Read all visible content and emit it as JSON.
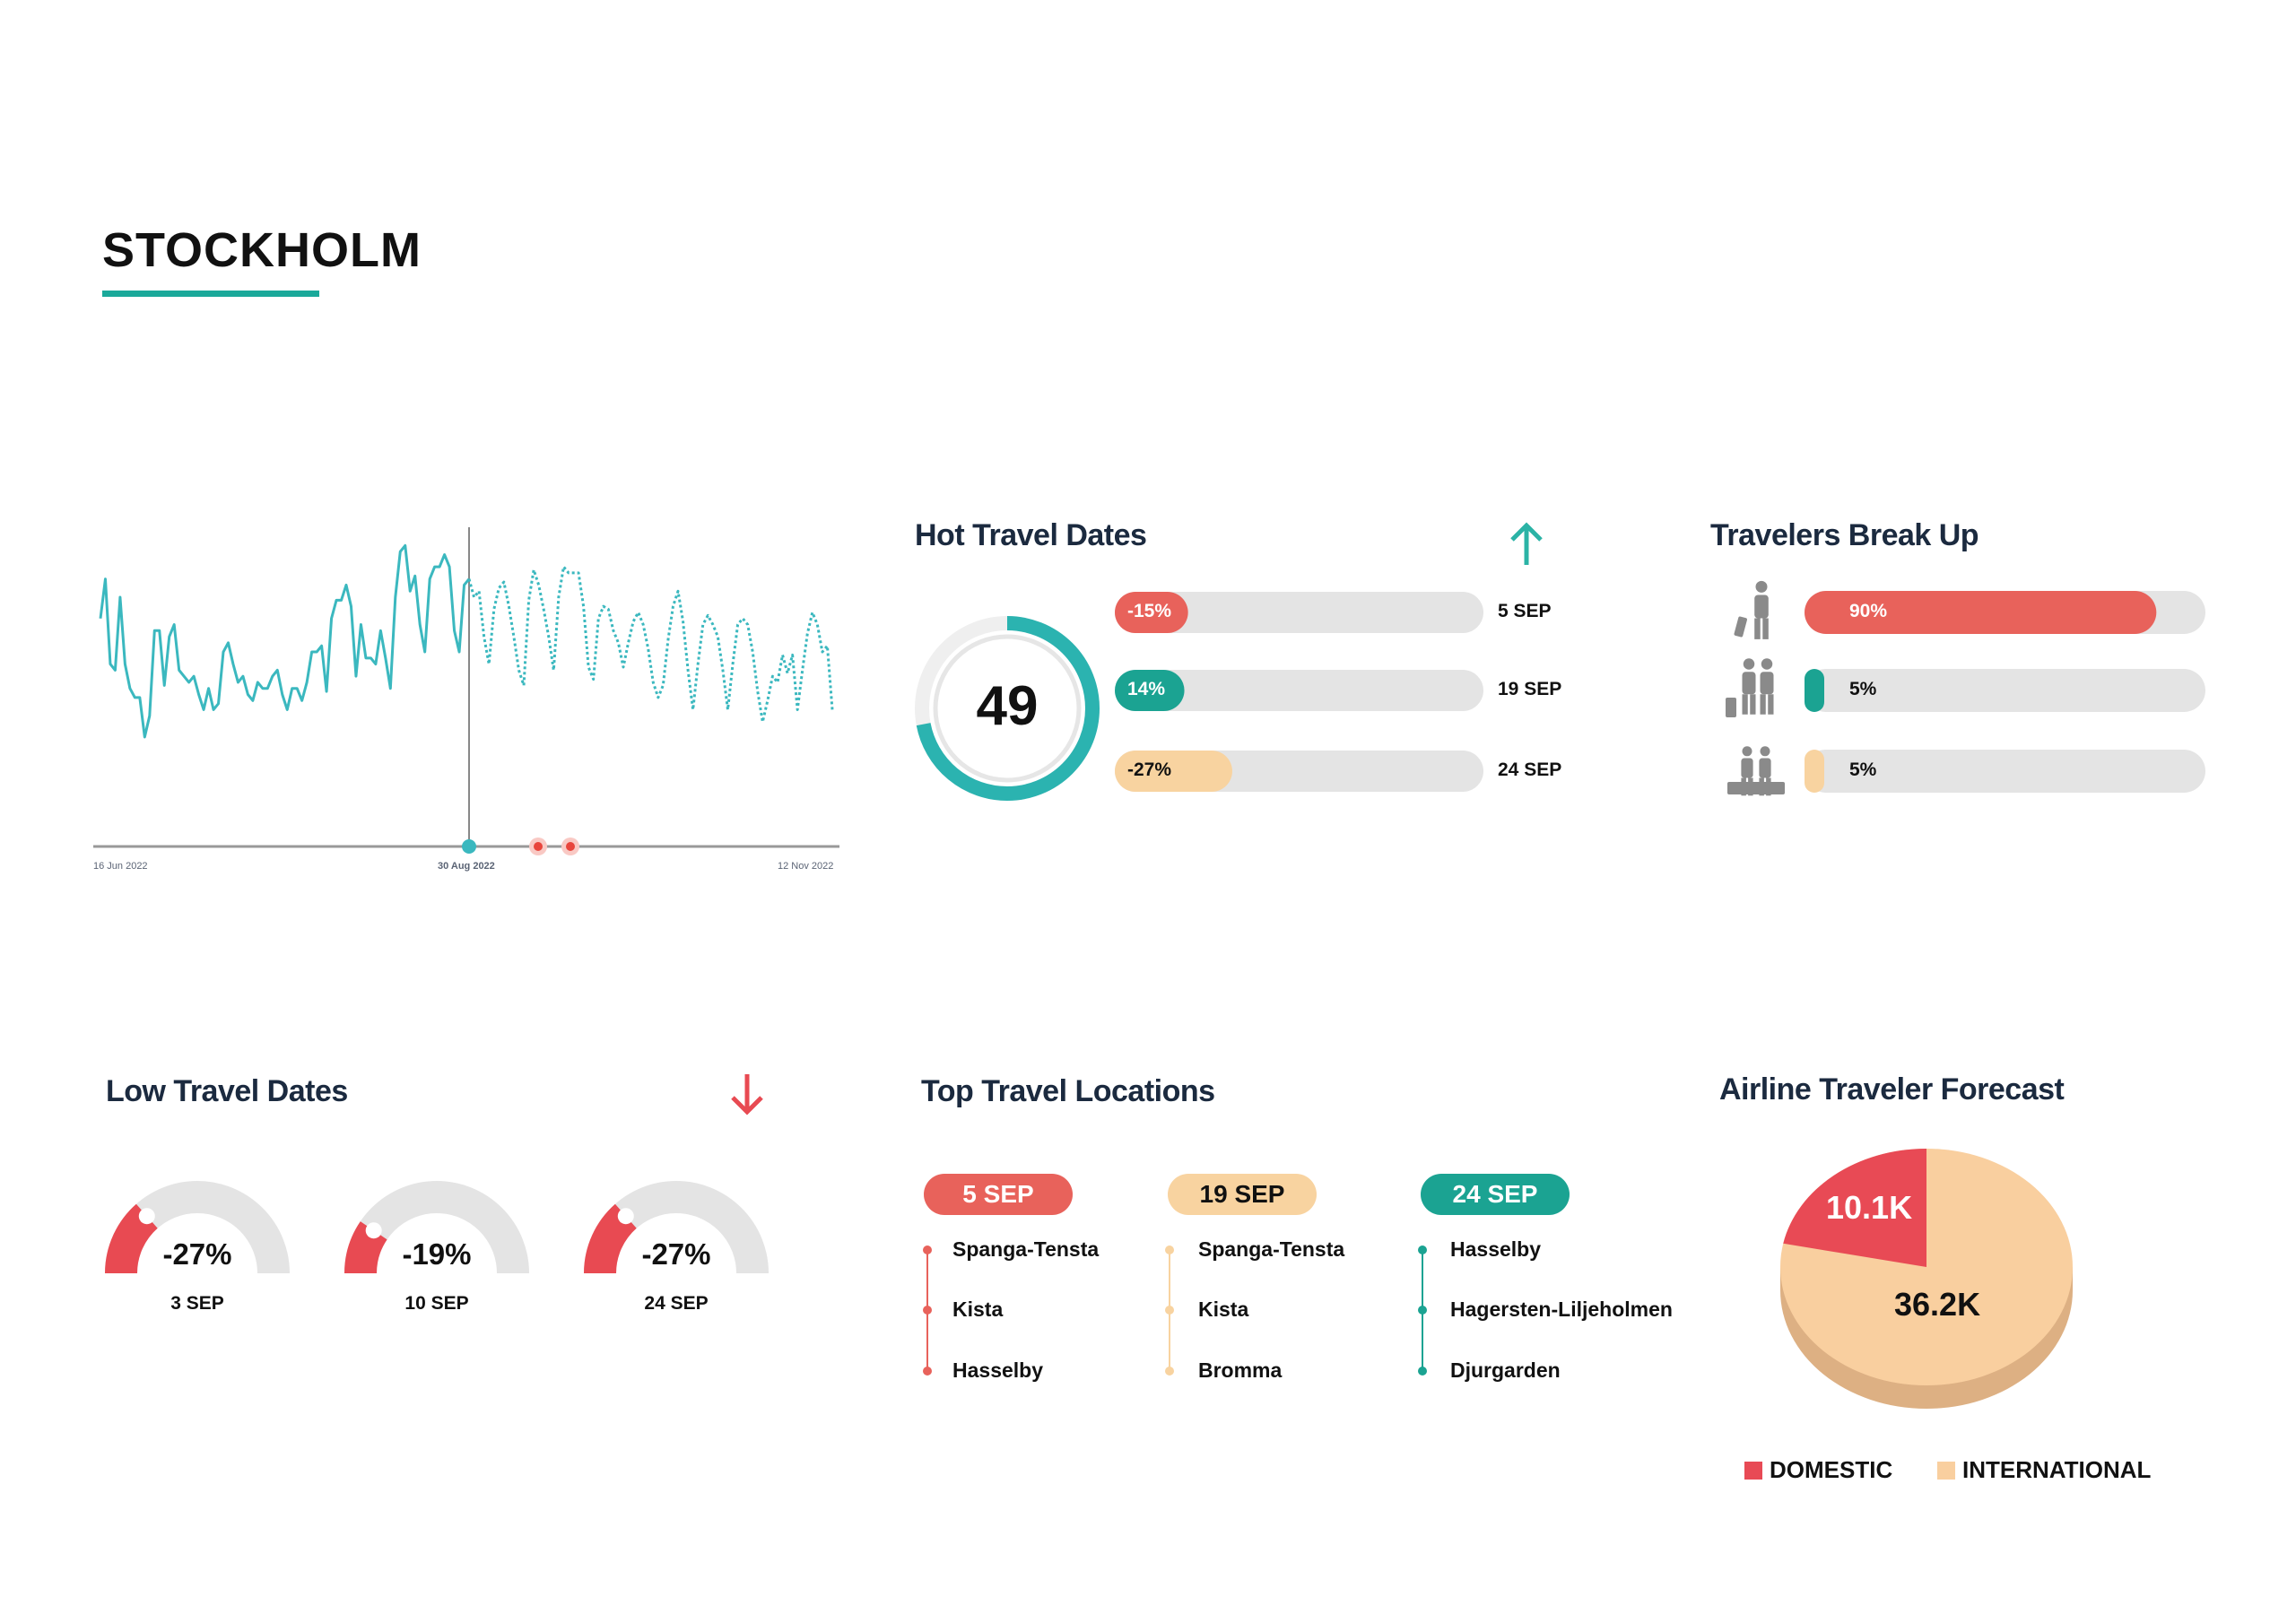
{
  "page": {
    "title": "STOCKHOLM"
  },
  "colors": {
    "teal": "#1ba392",
    "line": "#3bb8bf",
    "red": "#e8625b",
    "gauge_red": "#e84a52",
    "peach": "#f8d3a0",
    "track": "#e4e4e4",
    "navy": "#1b2a3f"
  },
  "chart_data": [
    {
      "type": "line",
      "x_start": "16 Jun 2022",
      "x_split": "30 Aug 2022",
      "x_end": "12 Nov 2022",
      "tick_labels": [
        "16 Jun 2022",
        "30 Aug 2022",
        "12 Nov 2022"
      ],
      "y_axis_shown": false,
      "grid": false,
      "series": [
        {
          "style": "solid",
          "values": [
            75,
            88,
            60,
            58,
            82,
            60,
            52,
            49,
            49,
            36,
            43,
            71,
            71,
            53,
            69,
            73,
            58,
            56,
            54,
            56,
            50,
            45,
            52,
            45,
            47,
            64,
            67,
            60,
            54,
            56,
            50,
            48,
            54,
            52,
            52,
            56,
            58,
            50,
            45,
            52,
            52,
            48,
            54,
            64,
            64,
            66,
            51,
            75,
            81,
            81,
            86,
            79,
            56,
            73,
            62,
            62,
            60,
            71,
            62,
            52,
            82,
            97,
            99,
            84,
            89,
            73,
            64,
            88,
            92,
            92,
            96,
            92,
            71,
            64,
            86,
            88
          ]
        },
        {
          "style": "dashed",
          "values": [
            88,
            82,
            84,
            69,
            60,
            78,
            85,
            87,
            79,
            69,
            58,
            53,
            81,
            91,
            86,
            78,
            69,
            58,
            82,
            92,
            90,
            90,
            90,
            79,
            59,
            55,
            75,
            79,
            78,
            71,
            67,
            59,
            67,
            74,
            77,
            73,
            65,
            54,
            49,
            53,
            68,
            79,
            84,
            74,
            58,
            45,
            60,
            73,
            76,
            73,
            69,
            58,
            45,
            60,
            73,
            75,
            73,
            64,
            51,
            41,
            48,
            56,
            54,
            63,
            57,
            63,
            45,
            58,
            70,
            77,
            73,
            64,
            66,
            45
          ]
        }
      ],
      "markers": [
        {
          "color": "#3bb8bf",
          "at": "30 Aug 2022"
        },
        {
          "color": "#e8453c"
        },
        {
          "color": "#e8453c"
        }
      ]
    },
    {
      "type": "bar",
      "title": "Hot Travel Dates",
      "summary_value": "49",
      "summary_ring_fraction": 0.72,
      "categories": [
        "5 SEP",
        "19 SEP",
        "24 SEP"
      ],
      "labels": [
        "-15%",
        "14%",
        "-27%"
      ],
      "values": [
        -15,
        14,
        -27
      ],
      "bar_colors": [
        "#e8625b",
        "#1ba392",
        "#f8d3a0"
      ]
    },
    {
      "type": "bar",
      "title": "Travelers Break Up",
      "categories": [
        "solo-traveler-icon",
        "couple-traveler-icon",
        "family-traveler-icon"
      ],
      "labels": [
        "90%",
        "5%",
        "5%"
      ],
      "values": [
        90,
        5,
        5
      ],
      "bar_colors": [
        "#e8625b",
        "#1ba392",
        "#f8d3a0"
      ]
    },
    {
      "type": "gauge",
      "title": "Low Travel Dates",
      "categories": [
        "3 SEP",
        "10 SEP",
        "24 SEP"
      ],
      "labels": [
        "-27%",
        "-19%",
        "-27%"
      ],
      "values": [
        -27,
        -19,
        -27
      ]
    },
    {
      "type": "pie",
      "title": "Airline Traveler Forecast",
      "slices": [
        {
          "name": "DOMESTIC",
          "value": 10.1,
          "label": "10.1K",
          "color": "#e84a55"
        },
        {
          "name": "INTERNATIONAL",
          "value": 36.2,
          "label": "36.2K",
          "color": "#f9cf9f"
        }
      ],
      "legend": "bottom"
    }
  ],
  "top_locations": {
    "title": "Top Travel Locations",
    "columns": [
      {
        "date": "5 SEP",
        "color": "#e8625b",
        "text_color": "#ffffff",
        "items": [
          "Spanga-Tensta",
          "Kista",
          "Hasselby"
        ]
      },
      {
        "date": "19 SEP",
        "color": "#f8d3a0",
        "text_color": "#111111",
        "items": [
          "Spanga-Tensta",
          "Kista",
          "Bromma"
        ]
      },
      {
        "date": "24 SEP",
        "color": "#1ba392",
        "text_color": "#ffffff",
        "items": [
          "Hasselby",
          "Hagersten-Liljeholmen",
          "Djurgarden"
        ]
      }
    ]
  },
  "icons": {
    "hot_arrow": "arrow-up-icon",
    "low_arrow": "arrow-down-icon"
  }
}
